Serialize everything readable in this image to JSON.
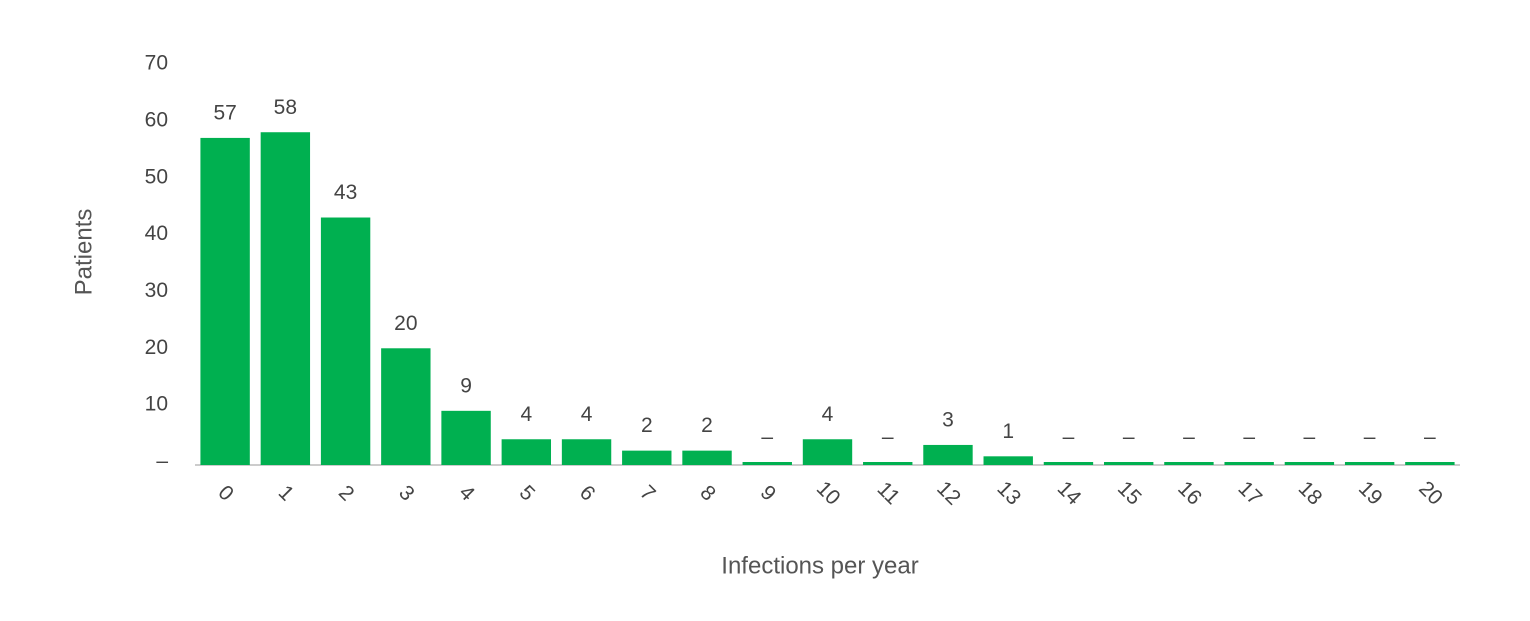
{
  "chart_data": {
    "type": "bar",
    "x_label": "Infections per year",
    "y_label": "Patients",
    "categories": [
      "0",
      "1",
      "2",
      "3",
      "4",
      "5",
      "6",
      "7",
      "8",
      "9",
      "10",
      "11",
      "12",
      "13",
      "14",
      "15",
      "16",
      "17",
      "18",
      "19",
      "20"
    ],
    "values": [
      57,
      58,
      43,
      20,
      9,
      4,
      4,
      2,
      2,
      0,
      4,
      0,
      3,
      1,
      0,
      0,
      0,
      0,
      0,
      0,
      0
    ],
    "value_labels": [
      "57",
      "58",
      "43",
      "20",
      "9",
      "4",
      "4",
      "2",
      "2",
      "–",
      "4",
      "–",
      "3",
      "1",
      "–",
      "–",
      "–",
      "–",
      "–",
      "–",
      "–"
    ],
    "color": "#00b050",
    "ylim": [
      0,
      70
    ],
    "yticks": [
      {
        "value": 0,
        "label": "–"
      },
      10,
      20,
      30,
      40,
      50,
      60,
      70
    ],
    "grid": false
  }
}
